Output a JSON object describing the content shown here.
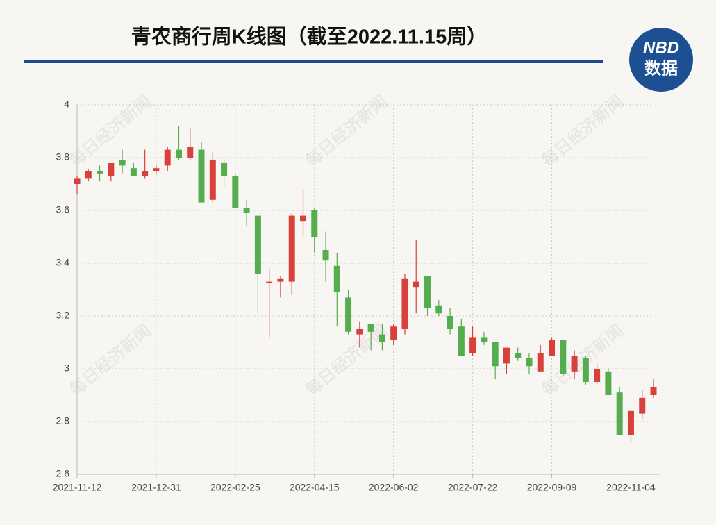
{
  "chart_data": {
    "type": "candlestick",
    "title": "青农商行周K线图（截至2022.11.15周）",
    "logo": {
      "brand": "NBD",
      "label": "数据"
    },
    "watermark": "每日经济新闻",
    "categories": [
      "2021-11-12",
      null,
      null,
      null,
      null,
      null,
      null,
      "2021-12-31",
      null,
      null,
      null,
      null,
      null,
      null,
      "2022-02-25",
      null,
      null,
      null,
      null,
      null,
      null,
      "2022-04-15",
      null,
      null,
      null,
      null,
      null,
      null,
      "2022-06-02",
      null,
      null,
      null,
      null,
      null,
      null,
      "2022-07-22",
      null,
      null,
      null,
      null,
      null,
      null,
      "2022-09-09",
      null,
      null,
      null,
      null,
      null,
      null,
      "2022-11-04",
      null,
      null
    ],
    "open": [
      3.7,
      3.72,
      3.75,
      3.73,
      3.79,
      3.76,
      3.73,
      3.75,
      3.77,
      3.83,
      3.8,
      3.83,
      3.64,
      3.78,
      3.73,
      3.61,
      3.58,
      3.33,
      3.33,
      3.33,
      3.56,
      3.6,
      3.45,
      3.39,
      3.27,
      3.13,
      3.17,
      3.13,
      3.11,
      3.15,
      3.31,
      3.35,
      3.24,
      3.2,
      3.16,
      3.06,
      3.12,
      3.1,
      3.02,
      3.06,
      3.04,
      2.99,
      3.05,
      3.11,
      2.99,
      3.04,
      2.95,
      2.99,
      2.91,
      2.75,
      2.83,
      2.9
    ],
    "high": [
      3.73,
      3.755,
      3.77,
      3.78,
      3.83,
      3.78,
      3.83,
      3.77,
      3.84,
      3.92,
      3.91,
      3.86,
      3.82,
      3.79,
      3.74,
      3.64,
      3.58,
      3.38,
      3.35,
      3.59,
      3.68,
      3.61,
      3.52,
      3.44,
      3.3,
      3.18,
      3.17,
      3.17,
      3.17,
      3.36,
      3.49,
      3.35,
      3.26,
      3.23,
      3.19,
      3.16,
      3.14,
      3.1,
      3.08,
      3.08,
      3.06,
      3.09,
      3.12,
      3.11,
      3.07,
      3.05,
      3.02,
      3.0,
      2.93,
      2.84,
      2.92,
      2.96
    ],
    "low": [
      3.66,
      3.71,
      3.71,
      3.71,
      3.74,
      3.73,
      3.72,
      3.74,
      3.75,
      3.79,
      3.79,
      3.63,
      3.63,
      3.69,
      3.61,
      3.54,
      3.21,
      3.12,
      3.27,
      3.28,
      3.5,
      3.44,
      3.33,
      3.16,
      3.13,
      3.08,
      3.07,
      3.07,
      3.09,
      3.13,
      3.21,
      3.2,
      3.2,
      3.13,
      3.05,
      3.05,
      3.09,
      2.96,
      2.98,
      3.03,
      2.98,
      2.99,
      3.05,
      2.97,
      2.96,
      2.94,
      2.94,
      2.9,
      2.75,
      2.72,
      2.81,
      2.89
    ],
    "close": [
      3.72,
      3.75,
      3.74,
      3.78,
      3.77,
      3.73,
      3.75,
      3.76,
      3.83,
      3.8,
      3.84,
      3.63,
      3.79,
      3.73,
      3.61,
      3.59,
      3.36,
      3.33,
      3.34,
      3.58,
      3.58,
      3.5,
      3.41,
      3.29,
      3.14,
      3.15,
      3.14,
      3.1,
      3.16,
      3.34,
      3.33,
      3.23,
      3.21,
      3.15,
      3.05,
      3.12,
      3.1,
      3.01,
      3.08,
      3.04,
      3.01,
      3.06,
      3.11,
      2.98,
      3.05,
      2.95,
      3.0,
      2.9,
      2.75,
      2.84,
      2.89,
      2.93
    ],
    "up_color": "#d7403b",
    "down_color": "#55ad4e",
    "ylim": [
      2.6,
      4
    ],
    "yticks": [
      2.6,
      2.8,
      3,
      3.2,
      3.4,
      3.6,
      3.8,
      4
    ],
    "grid": true
  }
}
